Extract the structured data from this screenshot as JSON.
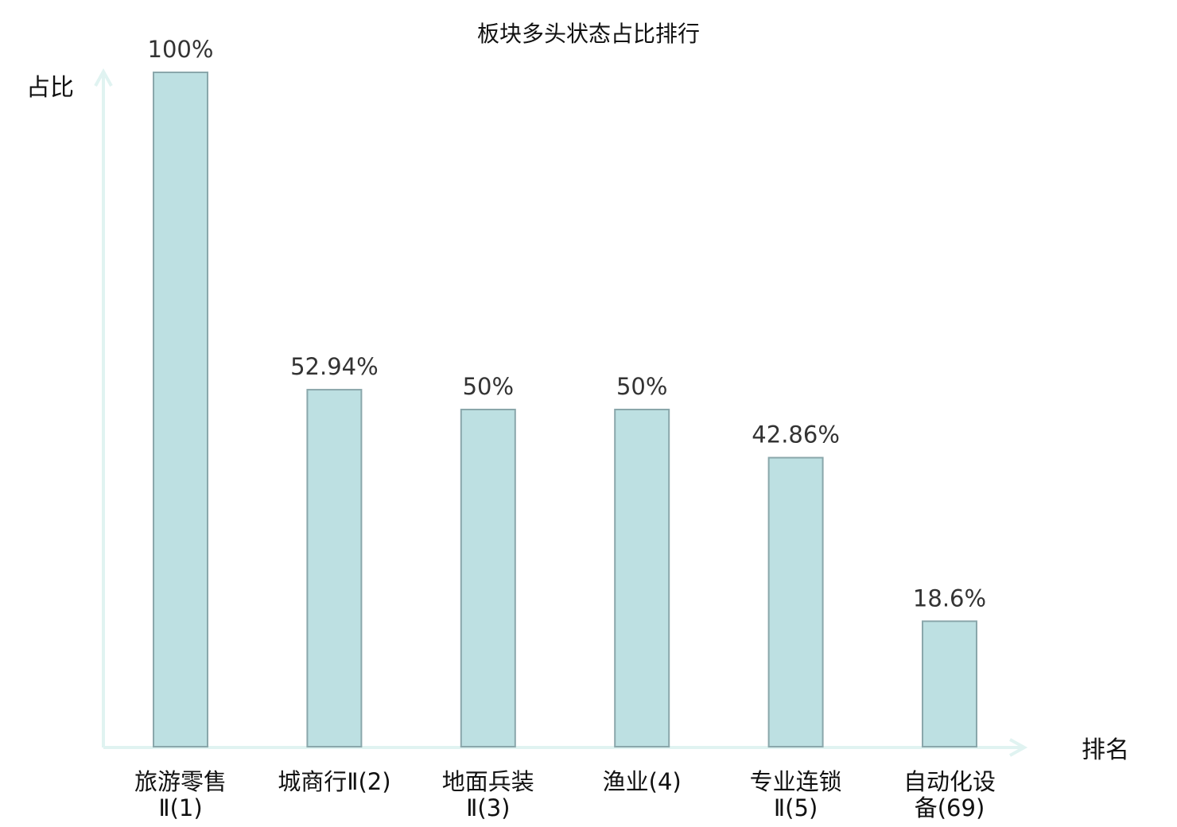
{
  "chart_data": {
    "type": "bar",
    "title": "板块多头状态占比排行",
    "ylabel": "占比",
    "xlabel": "排名",
    "categories": [
      [
        "旅游零售",
        "Ⅱ(1)"
      ],
      [
        "城商行Ⅱ(2)"
      ],
      [
        "地面兵装",
        "Ⅱ(3)"
      ],
      [
        "渔业(4)"
      ],
      [
        "专业连锁",
        "Ⅱ(5)"
      ],
      [
        "自动化设",
        "备(69)"
      ]
    ],
    "values": [
      100,
      52.94,
      50,
      50,
      42.86,
      18.6
    ],
    "value_labels": [
      "100%",
      "52.94%",
      "50%",
      "50%",
      "42.86%",
      "18.6%"
    ],
    "highlight_index": 5,
    "ylim": [
      0,
      100
    ],
    "grid": false,
    "legend": "none",
    "colors": {
      "bar_fill": "#bde0e2",
      "bar_stroke": "#8aa7ab",
      "axis": "#e0f3f1",
      "highlight_text": "#e01b1b"
    }
  }
}
